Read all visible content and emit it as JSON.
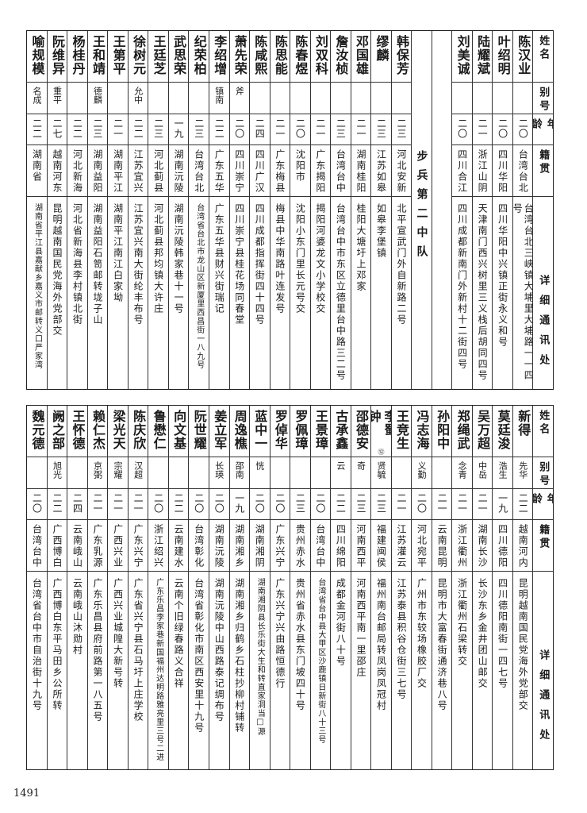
{
  "header": {
    "name": "姓名",
    "alias": "别号",
    "age": "年龄",
    "native": "籍贯",
    "address": "详细通讯处"
  },
  "top": {
    "right_group": [
      {
        "name": "陈汉业",
        "alias": "",
        "age": "二〇",
        "native": "台湾台北",
        "address": "台湾台北三峡镇大埔里大埔路一一四号"
      },
      {
        "name": "叶绍明",
        "alias": "",
        "age": "二〇",
        "native": "四川华阳",
        "address": "四川华阳中兴镇正街永义和号"
      },
      {
        "name": "陆耀斌",
        "alias": "",
        "age": "二一",
        "native": "浙江山阴",
        "address": "天津南门西兴树里三义栈后胡同四号"
      },
      {
        "name": "刘美诚",
        "alias": "",
        "age": "二〇",
        "native": "四川合江",
        "address": "四川成都新南门外新村十二街四号"
      }
    ],
    "section_title": "步兵第二中队",
    "left_group": [
      {
        "name": "韩保芳",
        "alias": "",
        "age": "二三",
        "native": "河北安新",
        "address": "北平宣武门外自新路二号"
      },
      {
        "name": "缪麟",
        "alias": "",
        "age": "二三",
        "native": "江苏如皋",
        "address": "如皋李堡镇"
      },
      {
        "name": "邓国雄",
        "alias": "",
        "age": "二一",
        "native": "湖南桂阳",
        "address": "桂阳大塘圩上邓家"
      },
      {
        "name": "詹汝桢",
        "alias": "",
        "age": "二三",
        "native": "台湾台中",
        "address": "台湾台中市东区立德里台中路三二号"
      },
      {
        "name": "刘双科",
        "alias": "",
        "age": "二一",
        "native": "广东揭阳",
        "address": "揭阳河婆龙文小学校交"
      },
      {
        "name": "陈春煜",
        "alias": "",
        "age": "二〇",
        "native": "沈阳市",
        "address": "沈阳小东门里长元号交"
      },
      {
        "name": "陈思能",
        "alias": "",
        "age": "二一",
        "native": "广东梅县",
        "address": "梅县中华南路叶连发号"
      },
      {
        "name": "陈咸熙",
        "alias": "",
        "age": "二四",
        "native": "四川广汉",
        "address": "四川成都指挥街四十四号"
      },
      {
        "name": "萧先荣",
        "alias": "斧",
        "age": "二〇",
        "native": "四川崇宁",
        "address": "四川崇宁县桂花场同春堂"
      },
      {
        "name": "李绍增",
        "alias": "镇南",
        "age": "二二",
        "native": "广东五华",
        "address": "广东五华县财兴街瑞记"
      },
      {
        "name": "纪荣柏",
        "alias": "",
        "age": "二三",
        "native": "台湾台北",
        "address": "台湾省台北市龙山区新厦里西昌街一八九号"
      },
      {
        "name": "武思荣",
        "alias": "",
        "age": "一九",
        "native": "湖南沅陵",
        "address": "湖南沅陵韩家巷十一号"
      },
      {
        "name": "王廷芝",
        "alias": "",
        "age": "二三",
        "native": "河北蓟县",
        "address": "河北蓟县邦均镇大许庄"
      },
      {
        "name": "徐树元",
        "alias": "允中",
        "age": "二二",
        "native": "江苏宜兴",
        "address": "江苏宜兴南大街纶丰布号"
      },
      {
        "name": "王第平",
        "alias": "",
        "age": "二一",
        "native": "湖南平江",
        "address": "湖南平江南江白家坳"
      },
      {
        "name": "王和靖",
        "alias": "德麟",
        "age": "二三",
        "native": "湖南益阳",
        "address": "湖南益阳石笥邮转垅子山"
      },
      {
        "name": "杨桂丹",
        "alias": "",
        "age": "二二",
        "native": "河北新海",
        "address": "河北省新海县李村镇北街"
      },
      {
        "name": "阮维异",
        "alias": "重平",
        "age": "二七",
        "native": "越南河东",
        "address": "昆明越南国民党海外党部交"
      },
      {
        "name": "喻规模",
        "alias": "名成",
        "age": "二二",
        "native": "湖南省",
        "address": "湖南省平江县嘉献乡嘉义市邮转义口严家湾"
      }
    ]
  },
  "bottom": {
    "rows": [
      {
        "name": "新得",
        "alias": "先华",
        "age": "二二",
        "native": "越南河内",
        "address": "昆明越南国民党海外党部交"
      },
      {
        "name": "莫廷浚",
        "alias": "浩生",
        "age": "一九",
        "native": "四川德阳",
        "address": "四川德阳南街一四七号"
      },
      {
        "name": "吴万超",
        "alias": "中岳",
        "age": "二一",
        "native": "湖南长沙",
        "address": "长沙东乡金井团山邮交"
      },
      {
        "name": "郑绳武",
        "alias": "念青",
        "age": "二一",
        "native": "浙江衢州",
        "address": "浙江衢州石梁转交"
      },
      {
        "name": "孙阳中",
        "alias": "",
        "age": "二一",
        "native": "云南昆明",
        "address": "昆明市大富春街通济巷八号"
      },
      {
        "name": "冯志海",
        "alias": "义勤",
        "age": "二〇",
        "native": "河北宛平",
        "address": "广州市东较场橡胶厂交"
      },
      {
        "name": "王竞生",
        "alias": "",
        "age": "二一",
        "native": "江苏灌云",
        "address": "江苏泰县积谷仓街三七号"
      },
      {
        "name": "李蜀钟",
        "footnote": "⑫",
        "alias": "贤毓",
        "age": "二三",
        "native": "福建闽侯",
        "address": "福州南台邮局转凤岗凤冠村"
      },
      {
        "name": "邵德安",
        "alias": "奇",
        "age": "二三",
        "native": "河南西平",
        "address": "河南西平南一里邵庄"
      },
      {
        "name": "古承鑫",
        "alias": "云",
        "age": "二二",
        "native": "四川绵阳",
        "address": "成都金河街八十号"
      },
      {
        "name": "王景璋",
        "alias": "",
        "age": "二〇",
        "native": "台湾台中",
        "address": "台湾省台中县大甲区沙鹿镇日新街八十三号"
      },
      {
        "name": "罗佩璋",
        "alias": "",
        "age": "二三",
        "native": "贵州赤水",
        "address": "贵州省赤水县东门坡四十号"
      },
      {
        "name": "罗倬华",
        "alias": "",
        "age": "二〇",
        "native": "广东兴宁",
        "address": "广东兴宁兴由路恒德行"
      },
      {
        "name": "蓝中一",
        "alias": "恍",
        "age": "二〇",
        "native": "湖南湘阴",
        "address": "湖南湘阴县长乐街大生和转直家洞当□源"
      },
      {
        "name": "周逸樵",
        "alias": "邵南",
        "age": "一九",
        "native": "湖南湘乡",
        "address": "湖南湘乡归鹤乡石柱抄柳村铺转"
      },
      {
        "name": "姜立军",
        "alias": "长瑛",
        "age": "二〇",
        "native": "湖南沅陵",
        "address": "湖南沅陵中山西路泰记绸布号"
      },
      {
        "name": "阮世耀",
        "alias": "",
        "age": "二〇",
        "native": "台湾彰化",
        "address": "台湾省彰化市南区西安里十九号"
      },
      {
        "name": "向文基",
        "alias": "",
        "age": "二二",
        "native": "云南建水",
        "address": "云南个旧绿春路义合祥"
      },
      {
        "name": "鲁懋仁",
        "alias": "",
        "age": "二〇",
        "native": "浙江绍兴",
        "address": "广东乐昌李家巷新国福州达明路雅亮里三号二进"
      },
      {
        "name": "陈庆欣",
        "alias": "汉超",
        "age": "二一",
        "native": "广东兴宁",
        "address": "广东省兴宁县石马圩上庄学校"
      },
      {
        "name": "梁光天",
        "alias": "宗耀",
        "age": "二一",
        "native": "广西兴业",
        "address": "广西兴业城隍大新号转"
      },
      {
        "name": "赖仁杰",
        "alias": "京弼",
        "age": "二一",
        "native": "广东乳源",
        "address": "广东乐昌县府前路第一八五号"
      },
      {
        "name": "王怀德",
        "alias": "",
        "age": "二四",
        "native": "云南峨山",
        "address": "云南峨山沐勋村"
      },
      {
        "name": "阙之部",
        "alias": "旭光",
        "age": "二二",
        "native": "广西博白",
        "address": "广西博白东平马田乡公所转"
      },
      {
        "name": "魏元德",
        "alias": "",
        "age": "二〇",
        "native": "台湾台中",
        "address": "台湾省台中市自治街十九号"
      }
    ]
  },
  "page_number": "1491"
}
